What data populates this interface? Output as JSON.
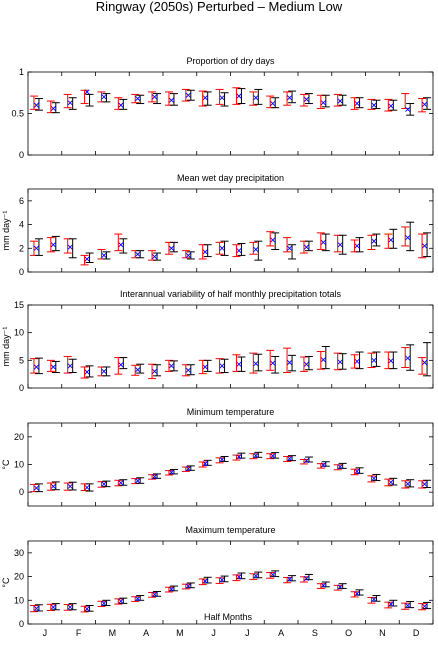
{
  "figure": {
    "title": "Ringway (2050s) Perturbed – Medium Low",
    "xlabel": "Half Months",
    "month_labels": [
      "J",
      "F",
      "M",
      "A",
      "M",
      "J",
      "J",
      "A",
      "S",
      "O",
      "N",
      "D"
    ]
  },
  "colors": {
    "observed": "#000000",
    "model": "#ff0000",
    "cross": "#0000ff"
  },
  "chart_data": [
    {
      "type": "errorbar",
      "title": "Proportion of dry days",
      "ylabel": "",
      "ylim": [
        0,
        1
      ],
      "yticks": [
        0,
        0.5,
        1
      ],
      "ytick_labels": [
        "0",
        "0.5",
        "1"
      ],
      "x": [
        1,
        2,
        3,
        4,
        5,
        6,
        7,
        8,
        9,
        10,
        11,
        12,
        13,
        14,
        15,
        16,
        17,
        18,
        19,
        20,
        21,
        22,
        23,
        24
      ],
      "series": [
        {
          "name": "",
          "color": "#ff0000",
          "mean": [
            0.63,
            0.58,
            0.65,
            0.7,
            0.7,
            0.62,
            0.68,
            0.7,
            0.68,
            0.72,
            0.68,
            0.7,
            0.71,
            0.68,
            0.64,
            0.68,
            0.66,
            0.64,
            0.66,
            0.62,
            0.61,
            0.6,
            0.65,
            0.6
          ],
          "err": [
            0.08,
            0.07,
            0.08,
            0.08,
            0.06,
            0.07,
            0.05,
            0.06,
            0.08,
            0.07,
            0.09,
            0.09,
            0.1,
            0.08,
            0.07,
            0.08,
            0.07,
            0.08,
            0.07,
            0.07,
            0.06,
            0.07,
            0.09,
            0.08
          ]
        },
        {
          "name": "",
          "color": "#000000",
          "mean": [
            0.61,
            0.57,
            0.62,
            0.66,
            0.69,
            0.61,
            0.67,
            0.68,
            0.67,
            0.72,
            0.68,
            0.67,
            0.71,
            0.7,
            0.63,
            0.7,
            0.68,
            0.65,
            0.66,
            0.63,
            0.61,
            0.6,
            0.55,
            0.62
          ],
          "err": [
            0.07,
            0.06,
            0.07,
            0.07,
            0.05,
            0.06,
            0.05,
            0.06,
            0.07,
            0.06,
            0.08,
            0.08,
            0.09,
            0.09,
            0.06,
            0.07,
            0.06,
            0.07,
            0.06,
            0.06,
            0.05,
            0.06,
            0.07,
            0.07
          ]
        },
        {
          "name": "",
          "color": "#0000ff",
          "mean": [
            0.6,
            0.56,
            0.63,
            0.76,
            0.7,
            0.6,
            0.68,
            0.7,
            0.66,
            0.72,
            0.69,
            0.69,
            0.71,
            0.69,
            0.62,
            0.69,
            0.67,
            0.63,
            0.65,
            0.62,
            0.6,
            0.59,
            0.55,
            0.61
          ]
        }
      ]
    },
    {
      "type": "errorbar",
      "title": "Mean wet day precipitation",
      "ylabel": "mm day⁻¹",
      "ylim": [
        0,
        7
      ],
      "yticks": [
        0,
        2,
        4,
        6
      ],
      "ytick_labels": [
        "0",
        "2",
        "4",
        "6"
      ],
      "x": [
        1,
        2,
        3,
        4,
        5,
        6,
        7,
        8,
        9,
        10,
        11,
        12,
        13,
        14,
        15,
        16,
        17,
        18,
        19,
        20,
        21,
        22,
        23,
        24
      ],
      "series": [
        {
          "name": "",
          "color": "#ff0000",
          "mean": [
            2.0,
            2.3,
            2.2,
            1.0,
            1.5,
            2.5,
            1.5,
            1.4,
            2.0,
            1.5,
            1.7,
            2.0,
            1.8,
            2.0,
            2.8,
            2.3,
            2.1,
            2.6,
            2.4,
            2.2,
            2.5,
            2.6,
            3.0,
            2.2
          ],
          "err": [
            0.6,
            0.6,
            0.6,
            0.4,
            0.4,
            0.7,
            0.3,
            0.4,
            0.5,
            0.3,
            0.6,
            0.5,
            0.5,
            0.5,
            0.6,
            0.6,
            0.5,
            0.7,
            0.7,
            0.5,
            0.6,
            0.6,
            0.8,
            1.0
          ]
        },
        {
          "name": "",
          "color": "#000000",
          "mean": [
            2.1,
            2.4,
            2.0,
            1.2,
            1.4,
            2.2,
            1.5,
            1.3,
            2.1,
            1.4,
            1.8,
            2.0,
            1.9,
            1.8,
            2.6,
            1.7,
            2.2,
            2.5,
            2.3,
            2.3,
            2.7,
            2.8,
            3.0,
            2.3
          ],
          "err": [
            0.7,
            0.6,
            0.8,
            0.4,
            0.3,
            0.6,
            0.3,
            0.3,
            0.4,
            0.3,
            0.5,
            0.6,
            0.5,
            0.8,
            0.7,
            0.6,
            0.4,
            0.7,
            0.8,
            0.6,
            0.5,
            0.8,
            1.2,
            1.0
          ]
        },
        {
          "name": "",
          "color": "#0000ff",
          "mean": [
            2.0,
            2.3,
            2.1,
            1.1,
            1.4,
            2.3,
            1.5,
            1.3,
            2.0,
            1.4,
            1.7,
            2.0,
            1.8,
            1.9,
            2.7,
            2.0,
            2.1,
            2.5,
            2.3,
            2.2,
            2.6,
            2.7,
            2.9,
            2.2
          ]
        }
      ]
    },
    {
      "type": "errorbar",
      "title": "Interannual variability of half monthly precipitation totals",
      "ylabel": "mm day⁻¹",
      "ylim": [
        0,
        15
      ],
      "yticks": [
        0,
        5,
        10,
        15
      ],
      "ytick_labels": [
        "0",
        "5",
        "10",
        "15"
      ],
      "x": [
        1,
        2,
        3,
        4,
        5,
        6,
        7,
        8,
        9,
        10,
        11,
        12,
        13,
        14,
        15,
        16,
        17,
        18,
        19,
        20,
        21,
        22,
        23,
        24
      ],
      "series": [
        {
          "name": "",
          "color": "#ff0000",
          "mean": [
            4.0,
            4.0,
            4.2,
            2.8,
            3.0,
            4.0,
            3.2,
            3.0,
            4.0,
            3.2,
            3.8,
            4.0,
            4.5,
            4.5,
            5.0,
            5.0,
            4.3,
            5.0,
            4.8,
            4.8,
            5.0,
            5.0,
            5.5,
            4.0
          ],
          "err": [
            1.3,
            1.0,
            1.5,
            1.0,
            0.8,
            1.5,
            0.9,
            1.3,
            1.0,
            1.0,
            1.2,
            1.3,
            1.5,
            1.8,
            1.8,
            2.2,
            1.3,
            1.6,
            1.5,
            1.2,
            1.3,
            1.5,
            1.8,
            1.5
          ]
        },
        {
          "name": "",
          "color": "#000000",
          "mean": [
            4.0,
            3.8,
            4.0,
            3.0,
            3.0,
            4.5,
            3.5,
            3.2,
            4.0,
            3.3,
            4.0,
            4.0,
            4.3,
            4.6,
            4.2,
            4.5,
            4.5,
            5.5,
            4.8,
            5.0,
            5.2,
            5.0,
            5.5,
            5.2
          ],
          "err": [
            1.4,
            1.0,
            1.2,
            1.0,
            0.8,
            1.0,
            0.8,
            1.0,
            0.9,
            0.9,
            1.0,
            1.2,
            1.3,
            1.5,
            1.5,
            1.4,
            1.2,
            2.0,
            1.4,
            1.5,
            1.3,
            1.5,
            2.3,
            3.0
          ]
        },
        {
          "name": "",
          "color": "#0000ff",
          "mean": [
            3.8,
            3.8,
            4.0,
            2.9,
            3.0,
            4.2,
            3.3,
            3.0,
            4.0,
            3.2,
            3.8,
            4.0,
            4.3,
            4.4,
            4.5,
            4.6,
            4.3,
            5.1,
            4.7,
            4.8,
            5.0,
            4.9,
            5.4,
            4.6
          ]
        }
      ]
    },
    {
      "type": "errorbar",
      "title": "Minimum temperature",
      "ylabel": "°C",
      "ylim": [
        -5,
        25
      ],
      "yticks": [
        0,
        10,
        20
      ],
      "ytick_labels": [
        "0",
        "10",
        "20"
      ],
      "x": [
        1,
        2,
        3,
        4,
        5,
        6,
        7,
        8,
        9,
        10,
        11,
        12,
        13,
        14,
        15,
        16,
        17,
        18,
        19,
        20,
        21,
        22,
        23,
        24
      ],
      "series": [
        {
          "name": "",
          "color": "#ff0000",
          "mean": [
            1.5,
            2.0,
            2.0,
            1.8,
            2.8,
            3.3,
            4.0,
            5.5,
            7.0,
            8.3,
            10.0,
            11.5,
            12.5,
            13.0,
            13.0,
            12.0,
            11.0,
            9.5,
            9.0,
            7.3,
            4.8,
            3.5,
            2.8,
            2.8
          ],
          "err": [
            1.3,
            1.3,
            1.3,
            1.2,
            1.0,
            1.0,
            0.9,
            0.8,
            0.8,
            0.8,
            0.9,
            0.9,
            0.9,
            0.9,
            0.9,
            0.9,
            0.8,
            0.8,
            0.9,
            1.0,
            1.1,
            1.2,
            1.3,
            1.3
          ]
        },
        {
          "name": "",
          "color": "#000000",
          "mean": [
            1.6,
            2.3,
            2.2,
            1.7,
            3.0,
            3.5,
            4.2,
            5.8,
            7.4,
            8.7,
            10.6,
            12.0,
            13.2,
            13.5,
            13.3,
            12.3,
            11.8,
            10.2,
            9.5,
            7.8,
            5.3,
            3.8,
            3.2,
            3.0
          ],
          "err": [
            1.4,
            1.4,
            1.4,
            1.3,
            1.0,
            1.0,
            1.0,
            0.8,
            0.8,
            0.8,
            0.9,
            0.9,
            0.9,
            0.9,
            1.0,
            0.9,
            0.9,
            0.8,
            0.9,
            1.0,
            1.1,
            1.2,
            1.3,
            1.3
          ]
        },
        {
          "name": "",
          "color": "#0000ff",
          "mean": [
            1.5,
            2.1,
            2.1,
            1.7,
            2.9,
            3.4,
            4.1,
            5.6,
            7.2,
            8.5,
            10.3,
            11.8,
            12.8,
            13.2,
            13.1,
            12.1,
            11.4,
            9.8,
            9.2,
            7.5,
            5.0,
            3.6,
            3.0,
            2.9
          ]
        }
      ]
    },
    {
      "type": "errorbar",
      "title": "Maximum temperature",
      "ylabel": "°C",
      "ylim": [
        0,
        35
      ],
      "yticks": [
        0,
        10,
        20,
        30
      ],
      "ytick_labels": [
        "0",
        "10",
        "20",
        "30"
      ],
      "x": [
        1,
        2,
        3,
        4,
        5,
        6,
        7,
        8,
        9,
        10,
        11,
        12,
        13,
        14,
        15,
        16,
        17,
        18,
        19,
        20,
        21,
        22,
        23,
        24
      ],
      "series": [
        {
          "name": "",
          "color": "#ff0000",
          "mean": [
            6.5,
            7.0,
            7.0,
            6.3,
            8.5,
            9.5,
            10.5,
            12.3,
            14.5,
            15.8,
            17.8,
            18.3,
            19.5,
            20.0,
            20.5,
            18.5,
            18.8,
            16.0,
            15.3,
            12.5,
            10.0,
            8.0,
            7.5,
            7.3
          ],
          "err": [
            1.3,
            1.3,
            1.2,
            1.2,
            1.1,
            1.1,
            1.0,
            1.0,
            1.0,
            1.0,
            1.2,
            1.2,
            1.2,
            1.2,
            1.2,
            1.1,
            1.1,
            1.0,
            1.0,
            1.1,
            1.2,
            1.2,
            1.3,
            1.3
          ]
        },
        {
          "name": "",
          "color": "#000000",
          "mean": [
            6.8,
            7.3,
            7.3,
            6.6,
            8.9,
            9.8,
            11.0,
            12.7,
            15.0,
            16.3,
            18.5,
            19.0,
            20.3,
            20.7,
            21.2,
            19.3,
            19.8,
            16.7,
            16.0,
            13.3,
            10.8,
            8.8,
            8.2,
            7.8
          ],
          "err": [
            1.3,
            1.3,
            1.3,
            1.2,
            1.1,
            1.1,
            1.0,
            1.0,
            1.0,
            1.0,
            1.2,
            1.2,
            1.2,
            1.2,
            1.2,
            1.1,
            1.1,
            1.0,
            1.0,
            1.1,
            1.2,
            1.2,
            1.3,
            1.3
          ]
        },
        {
          "name": "",
          "color": "#0000ff",
          "mean": [
            6.6,
            7.1,
            7.1,
            6.4,
            8.7,
            9.6,
            10.7,
            12.5,
            14.7,
            16.0,
            18.1,
            18.6,
            19.9,
            20.3,
            20.8,
            18.9,
            19.2,
            16.3,
            15.6,
            12.8,
            10.4,
            8.4,
            7.8,
            7.5
          ]
        }
      ]
    }
  ]
}
